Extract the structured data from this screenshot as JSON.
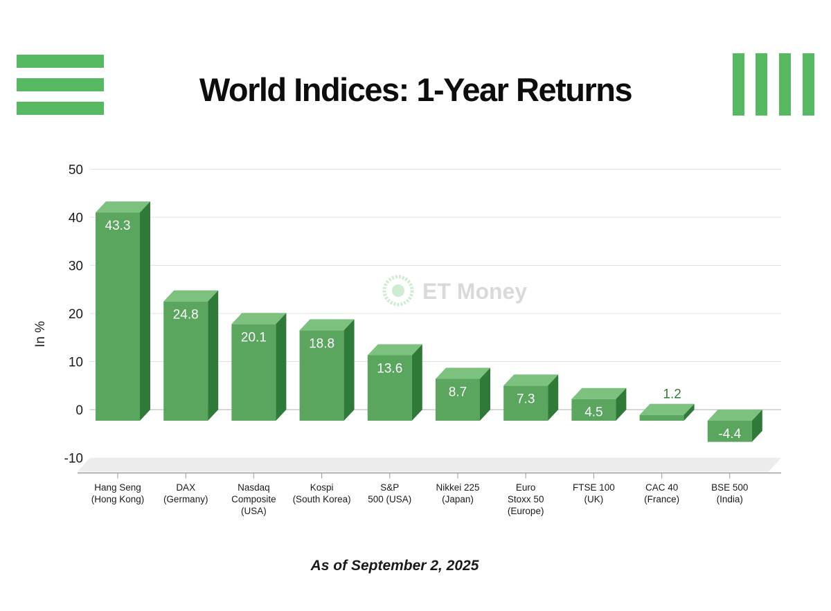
{
  "header": {
    "title": "World Indices: 1-Year Returns"
  },
  "footnote": "As of September 2, 2025",
  "watermark": {
    "text": "ET Money"
  },
  "colors": {
    "accent": "#57b862",
    "bar_front": "#5aa65f",
    "bar_top": "#7cc27e",
    "bar_side": "#2f7a38",
    "grid": "#e0e0e0",
    "value_label_inside": "#ffffff",
    "value_label_outside": "#2e7d32"
  },
  "chart_data": {
    "type": "bar",
    "title": "World Indices: 1-Year Returns",
    "ylabel": "In %",
    "xlabel": "",
    "ylim": [
      -10,
      50
    ],
    "yticks": [
      50,
      40,
      30,
      20,
      10,
      0,
      -10
    ],
    "grid": true,
    "style": "3d",
    "categories": [
      [
        "Hang Seng",
        "(Hong Kong)"
      ],
      [
        "DAX",
        "(Germany)"
      ],
      [
        "Nasdaq",
        "Composite",
        "(USA)"
      ],
      [
        "Kospi",
        "(South Korea)"
      ],
      [
        "S&P",
        "500 (USA)"
      ],
      [
        "Nikkei 225",
        "(Japan)"
      ],
      [
        "Euro",
        "Stoxx 50",
        "(Europe)"
      ],
      [
        "FTSE 100",
        "(UK)"
      ],
      [
        "CAC 40",
        "(France)"
      ],
      [
        "BSE 500",
        "(India)"
      ]
    ],
    "values": [
      43.3,
      24.8,
      20.1,
      18.8,
      13.6,
      8.7,
      7.3,
      4.5,
      1.2,
      -4.4
    ],
    "value_labels": [
      "43.3",
      "24.8",
      "20.1",
      "18.8",
      "13.6",
      "8.7",
      "7.3",
      "4.5",
      "1.2",
      "-4.4"
    ]
  }
}
